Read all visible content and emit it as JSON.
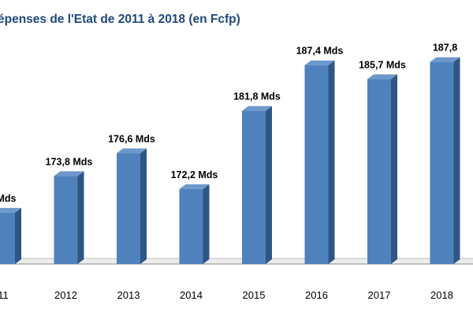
{
  "chart_data": {
    "type": "bar",
    "title": "épenses de l'Etat de 2011 à 2018  (en Fcfp)",
    "categories": [
      "11",
      "2012",
      "2013",
      "2014",
      "2015",
      "2016",
      "2017",
      "2018"
    ],
    "values": [
      169.3,
      173.8,
      176.6,
      172.2,
      181.8,
      187.4,
      185.7,
      187.8
    ],
    "value_labels": [
      "Mds",
      "173,8 Mds",
      "176,6 Mds",
      "172,2 Mds",
      "181,8 Mds",
      "187,4 Mds",
      "185,7 Mds",
      "187,8"
    ],
    "ylim": [
      163,
      189.6
    ],
    "bar_color": "#4f81bd",
    "bar_side_color": "#2e5685",
    "bar_top_color": "#6d98cb",
    "label_color": "#000000",
    "title_color": "#1f497d",
    "grid": false,
    "legend": "none",
    "style": "3d"
  }
}
